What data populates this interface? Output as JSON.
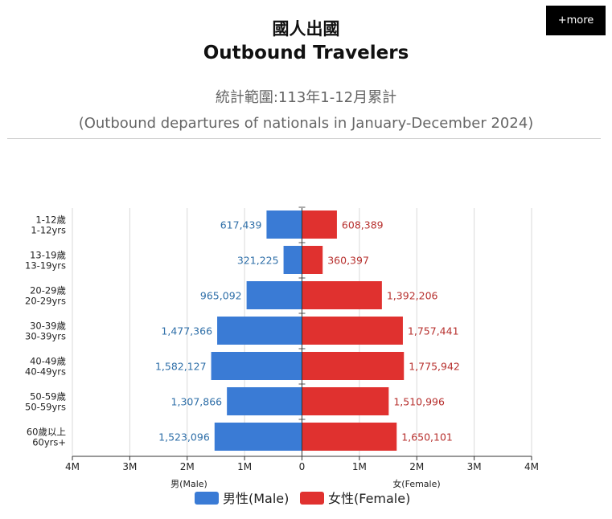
{
  "header": {
    "more_label": "+more",
    "title_zh": "國人出國",
    "title_en": "Outbound Travelers",
    "subtitle_zh": "統計範圍:113年1-12月累計",
    "subtitle_en": "(Outbound departures of nationals in January-December 2024)"
  },
  "chart_data": {
    "type": "bar",
    "orientation": "horizontal-population-pyramid",
    "categories": [
      [
        "1-12歲",
        "1-12yrs"
      ],
      [
        "13-19歲",
        "13-19yrs"
      ],
      [
        "20-29歲",
        "20-29yrs"
      ],
      [
        "30-39歲",
        "30-39yrs"
      ],
      [
        "40-49歲",
        "40-49yrs"
      ],
      [
        "50-59歲",
        "50-59yrs"
      ],
      [
        "60歲以上",
        "60yrs+"
      ]
    ],
    "series": [
      {
        "name": "男性(Male)",
        "color": "#3a7bd5",
        "label_color": "#2f6fa8",
        "values": [
          617439,
          321225,
          965092,
          1477366,
          1582127,
          1307866,
          1523096
        ],
        "value_labels": [
          "617,439",
          "321,225",
          "965,092",
          "1,477,366",
          "1,582,127",
          "1,307,866",
          "1,523,096"
        ]
      },
      {
        "name": "女性(Female)",
        "color": "#e0312f",
        "label_color": "#b7302e",
        "values": [
          608389,
          360397,
          1392206,
          1757441,
          1775942,
          1510996,
          1650101
        ],
        "value_labels": [
          "608,389",
          "360,397",
          "1,392,206",
          "1,757,441",
          "1,775,942",
          "1,510,996",
          "1,650,101"
        ]
      }
    ],
    "x_ticks": [
      -4000000,
      -3000000,
      -2000000,
      -1000000,
      0,
      1000000,
      2000000,
      3000000,
      4000000
    ],
    "x_tick_labels": [
      "4M",
      "3M",
      "2M",
      "1M",
      "0",
      "1M",
      "2M",
      "3M",
      "4M"
    ],
    "xlim": [
      -4000000,
      4000000
    ],
    "xlabel_left": "男(Male)",
    "xlabel_right": "女(Female)",
    "grid": true,
    "legend_position": "bottom"
  }
}
